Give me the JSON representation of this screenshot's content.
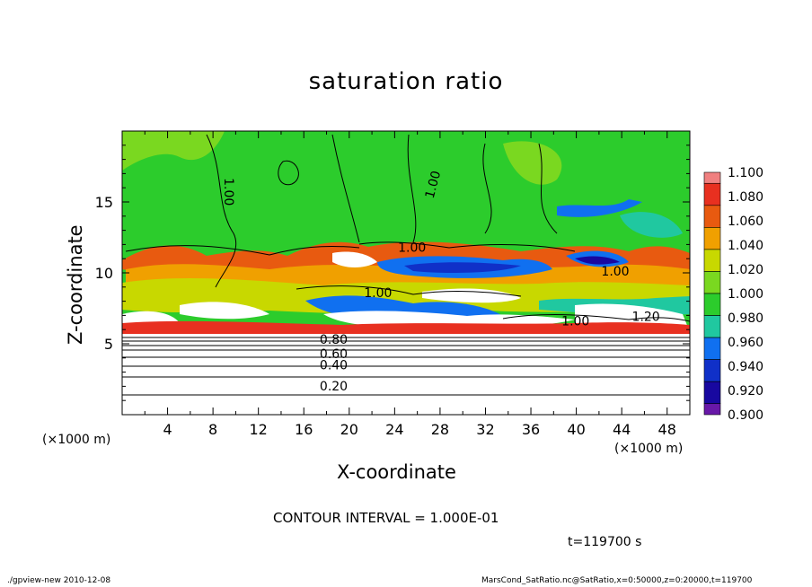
{
  "chart_data": {
    "type": "heatmap",
    "title": "saturation ratio",
    "xlabel": "X-coordinate",
    "ylabel": "Z-coordinate",
    "x_unit_label": "(×1000 m)",
    "xlim": [
      0,
      50
    ],
    "ylim": [
      0,
      20
    ],
    "xticks": [
      "4",
      "8",
      "12",
      "16",
      "20",
      "24",
      "28",
      "32",
      "36",
      "40",
      "44",
      "48"
    ],
    "yticks": [
      "5",
      "10",
      "15"
    ],
    "colorbar": {
      "levels": [
        "1.100",
        "1.080",
        "1.060",
        "1.040",
        "1.020",
        "1.000",
        "0.980",
        "0.960",
        "0.940",
        "0.920",
        "0.900"
      ],
      "colors": [
        "#f08080",
        "#e83020",
        "#e85a10",
        "#f0a000",
        "#c8d800",
        "#7ad820",
        "#2ccc2c",
        "#20c8a0",
        "#1070f0",
        "#1030c8",
        "#1808a0",
        "#6818a8"
      ]
    },
    "contour_labels": [
      "1.00",
      "1.00",
      "1.00",
      "1.00",
      "1.00",
      "1.00",
      "1.20",
      "0.80",
      "0.60",
      "0.40",
      "0.20"
    ],
    "contour_interval": "CONTOUR INTERVAL = 1.000E-01",
    "time": "t=119700 s"
  },
  "footer": {
    "left": "./gpview-new   2010-12-08",
    "right": "MarsCond_SatRatio.nc@SatRatio,x=0:50000,z=0:20000,t=119700"
  }
}
